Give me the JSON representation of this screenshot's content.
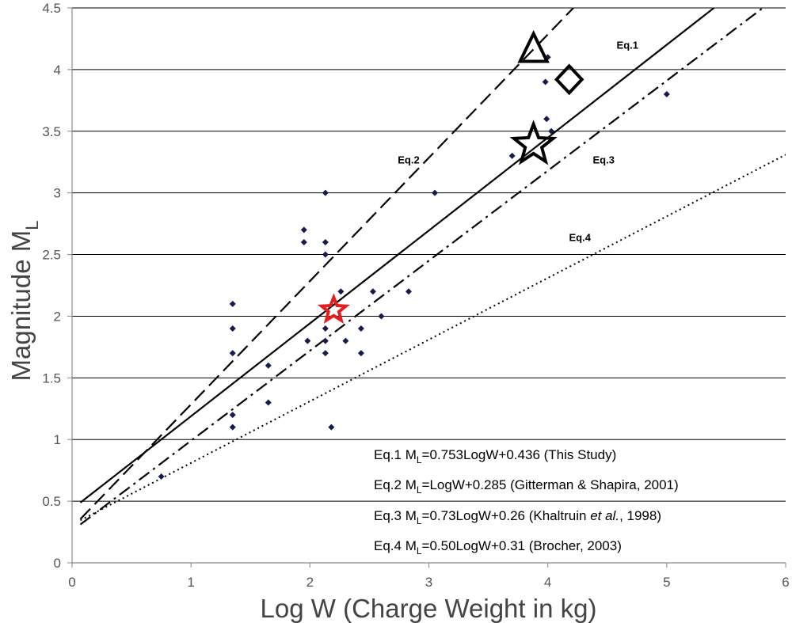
{
  "chart_data": {
    "type": "scatter",
    "xlabel": "Log W (Charge Weight in kg)",
    "ylabel": {
      "main": "Magnitude M",
      "sub": "L"
    },
    "xlim": [
      0,
      6
    ],
    "ylim": [
      0,
      4.5
    ],
    "x_ticks": [
      "0",
      "1",
      "2",
      "3",
      "4",
      "5",
      "6"
    ],
    "y_ticks": [
      "0",
      "0.5",
      "1",
      "1.5",
      "2",
      "2.5",
      "3",
      "3.5",
      "4",
      "4.5"
    ],
    "grid": "horizontal",
    "points": [
      {
        "x": 0.75,
        "y": 0.7
      },
      {
        "x": 1.35,
        "y": 2.1
      },
      {
        "x": 1.35,
        "y": 1.9
      },
      {
        "x": 1.35,
        "y": 1.7
      },
      {
        "x": 1.35,
        "y": 1.2
      },
      {
        "x": 1.35,
        "y": 1.1
      },
      {
        "x": 1.65,
        "y": 1.6
      },
      {
        "x": 1.65,
        "y": 1.3
      },
      {
        "x": 1.95,
        "y": 2.7
      },
      {
        "x": 1.95,
        "y": 2.6
      },
      {
        "x": 1.98,
        "y": 1.8
      },
      {
        "x": 2.13,
        "y": 3.0
      },
      {
        "x": 2.13,
        "y": 2.6
      },
      {
        "x": 2.13,
        "y": 2.5
      },
      {
        "x": 2.13,
        "y": 1.9
      },
      {
        "x": 2.13,
        "y": 1.8
      },
      {
        "x": 2.13,
        "y": 1.7
      },
      {
        "x": 2.18,
        "y": 1.1
      },
      {
        "x": 2.26,
        "y": 2.2
      },
      {
        "x": 2.3,
        "y": 1.8
      },
      {
        "x": 2.43,
        "y": 1.9
      },
      {
        "x": 2.43,
        "y": 1.7
      },
      {
        "x": 2.53,
        "y": 2.2
      },
      {
        "x": 2.6,
        "y": 2.0
      },
      {
        "x": 2.83,
        "y": 2.2
      },
      {
        "x": 3.05,
        "y": 3.0
      },
      {
        "x": 3.7,
        "y": 3.3
      },
      {
        "x": 3.98,
        "y": 3.9
      },
      {
        "x": 3.99,
        "y": 3.6
      },
      {
        "x": 4.0,
        "y": 4.1
      },
      {
        "x": 4.03,
        "y": 3.5
      },
      {
        "x": 5.0,
        "y": 3.8
      }
    ],
    "markers": [
      {
        "name": "red-star",
        "shape": "star",
        "x": 2.2,
        "y": 2.05,
        "color": "#e02020"
      },
      {
        "name": "open-star",
        "shape": "star",
        "x": 3.88,
        "y": 3.39,
        "color": "#000000"
      },
      {
        "name": "open-triangle",
        "shape": "triangle",
        "x": 3.88,
        "y": 4.15,
        "color": "#000000"
      },
      {
        "name": "open-diamond",
        "shape": "diamond",
        "x": 4.18,
        "y": 3.92,
        "color": "#000000"
      }
    ],
    "lines": [
      {
        "id": "eq1",
        "slope": 0.753,
        "intercept": 0.436,
        "style": "solid",
        "tag": "Eq.1",
        "tag_at": {
          "x": 4.67,
          "y": 4.17
        }
      },
      {
        "id": "eq2",
        "slope": 1.0,
        "intercept": 0.285,
        "style": "dashed",
        "tag": "Eq.2",
        "tag_at": {
          "x": 2.83,
          "y": 3.24
        }
      },
      {
        "id": "eq3",
        "slope": 0.73,
        "intercept": 0.26,
        "style": "dashdot",
        "tag": "Eq.3",
        "tag_at": {
          "x": 4.47,
          "y": 3.24
        }
      },
      {
        "id": "eq4",
        "slope": 0.5,
        "intercept": 0.31,
        "style": "dotted",
        "tag": "Eq.4",
        "tag_at": {
          "x": 4.27,
          "y": 2.61
        }
      }
    ],
    "legend": {
      "placement": "bottom-right",
      "rows": [
        {
          "label": "Eq.1 M",
          "sub": "L",
          "equation": "=0.753LogW+0.436 (This Study)"
        },
        {
          "label": "Eq.2 M",
          "sub": "L",
          "equation": "=LogW+0.285 (Gitterman & Shapira, 2001)"
        },
        {
          "label": "Eq.3 M",
          "sub": "L",
          "equation": "=0.73LogW+0.26 (Khaltruin ",
          "italic": "et al.",
          "after": ", 1998)"
        },
        {
          "label": "Eq.4 M",
          "sub": "L",
          "equation": "=0.50LogW+0.31 (Brocher, 2003)"
        }
      ]
    }
  }
}
